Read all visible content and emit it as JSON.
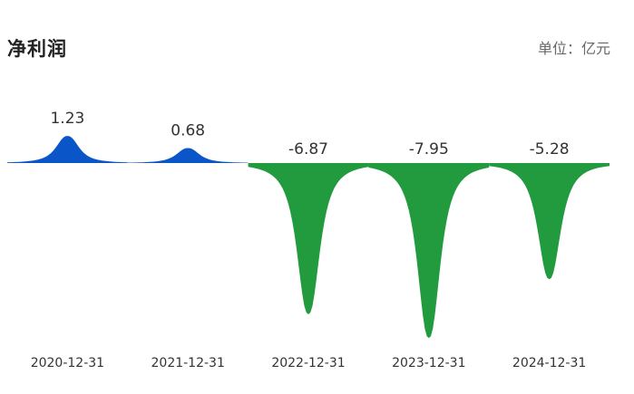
{
  "header": {
    "title": "净利润",
    "unit_label": "单位",
    "unit_sep": "：",
    "unit_value": "亿元"
  },
  "colors": {
    "positive": "#0a56c8",
    "negative": "#229a3e"
  },
  "chart_data": {
    "type": "area",
    "title": "净利润",
    "unit": "亿元",
    "categories": [
      "2020-12-31",
      "2021-12-31",
      "2022-12-31",
      "2023-12-31",
      "2024-12-31"
    ],
    "values": [
      1.23,
      0.68,
      -6.87,
      -7.95,
      -5.28
    ],
    "value_labels": [
      "1.23",
      "0.68",
      "-6.87",
      "-7.95",
      "-5.28"
    ],
    "grid": false,
    "legend": "none"
  }
}
